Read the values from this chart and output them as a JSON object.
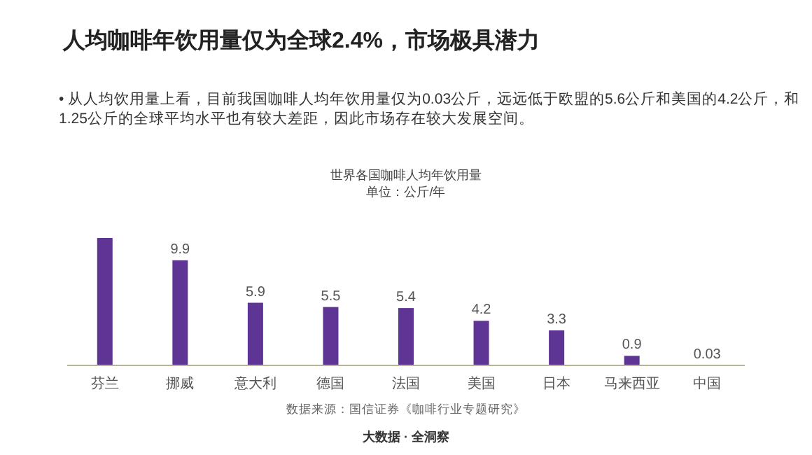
{
  "chart_data": {
    "type": "bar",
    "title": "人均咖啡年饮用量仅为全球2.4%，市场极具潜力",
    "subtitle": "世界各国咖啡人均年饮用量",
    "annotations": [
      "• 从人均饮用量上看，目前我国咖啡人均年饮用量仅为0.03公斤，远远低于欧盟的5.6公斤和美国的4.2公斤，和\n1.25公斤的全球平均水平也有较大差距，因此市场存在较大发展空间。",
      "单位：公斤/年",
      "数据来源：国信证券《咖啡行业专题研究》",
      "大数据 · 全洞察"
    ],
    "categories": [
      "芬兰",
      "挪威",
      "意大利",
      "德国",
      "法国",
      "美国",
      "日本",
      "马来西亚",
      "中国"
    ],
    "values": [
      12,
      9.9,
      5.9,
      5.5,
      5.4,
      4.2,
      3.3,
      0.9,
      0.03
    ],
    "value_labels": [
      null,
      "9.9",
      "5.9",
      "5.5",
      "5.4",
      "4.2",
      "3.3",
      "0.9",
      "0.03"
    ],
    "color": "#5e3595"
  }
}
